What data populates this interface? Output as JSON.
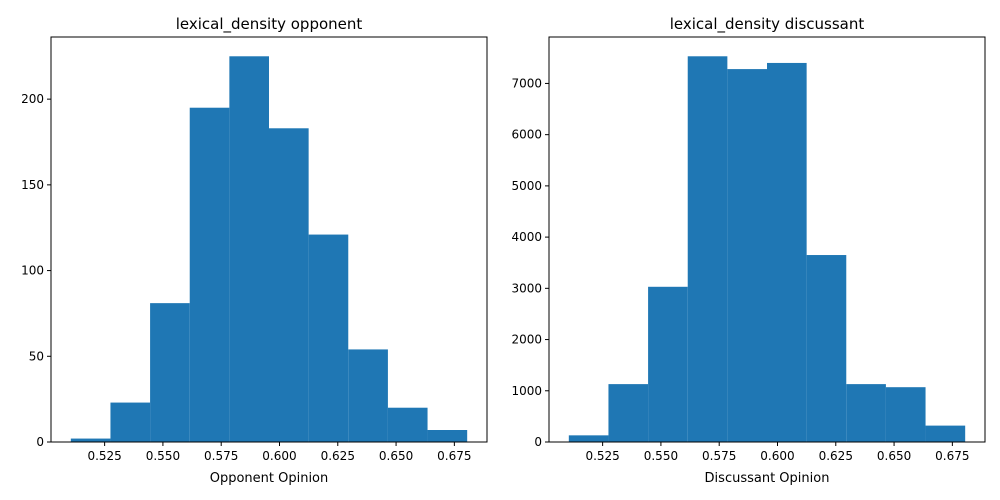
{
  "colors": {
    "bar": "#1f77b4",
    "axis": "#000000",
    "background": "#ffffff"
  },
  "chart_data": [
    {
      "type": "bar",
      "title": "lexical_density opponent",
      "xlabel": "Opponent Opinion",
      "ylabel": "",
      "grid": false,
      "bin_edges": [
        0.5105,
        0.5275,
        0.5445,
        0.5615,
        0.5785,
        0.5955,
        0.6125,
        0.6295,
        0.6465,
        0.6635,
        0.6805
      ],
      "values": [
        2,
        23,
        81,
        195,
        225,
        183,
        121,
        54,
        20,
        7
      ],
      "xlim": [
        0.502,
        0.689
      ],
      "ylim": [
        0,
        236.25
      ],
      "xticks": [
        0.525,
        0.55,
        0.575,
        0.6,
        0.625,
        0.65,
        0.675
      ],
      "xtick_labels": [
        "0.525",
        "0.550",
        "0.575",
        "0.600",
        "0.625",
        "0.650",
        "0.675"
      ],
      "yticks": [
        0,
        50,
        100,
        150,
        200
      ],
      "ytick_labels": [
        "0",
        "50",
        "100",
        "150",
        "200"
      ]
    },
    {
      "type": "bar",
      "title": "lexical_density discussant",
      "xlabel": "Discussant Opinion",
      "ylabel": "",
      "grid": false,
      "bin_edges": [
        0.5105,
        0.5275,
        0.5445,
        0.5615,
        0.5785,
        0.5955,
        0.6125,
        0.6295,
        0.6465,
        0.6635,
        0.6805
      ],
      "values": [
        130,
        1130,
        3030,
        7530,
        7280,
        7400,
        3650,
        1130,
        1070,
        320
      ],
      "xlim": [
        0.502,
        0.689
      ],
      "ylim": [
        0,
        7906.5
      ],
      "xticks": [
        0.525,
        0.55,
        0.575,
        0.6,
        0.625,
        0.65,
        0.675
      ],
      "xtick_labels": [
        "0.525",
        "0.550",
        "0.575",
        "0.600",
        "0.625",
        "0.650",
        "0.675"
      ],
      "yticks": [
        0,
        1000,
        2000,
        3000,
        4000,
        5000,
        6000,
        7000
      ],
      "ytick_labels": [
        "0",
        "1000",
        "2000",
        "3000",
        "4000",
        "5000",
        "6000",
        "7000"
      ]
    }
  ]
}
